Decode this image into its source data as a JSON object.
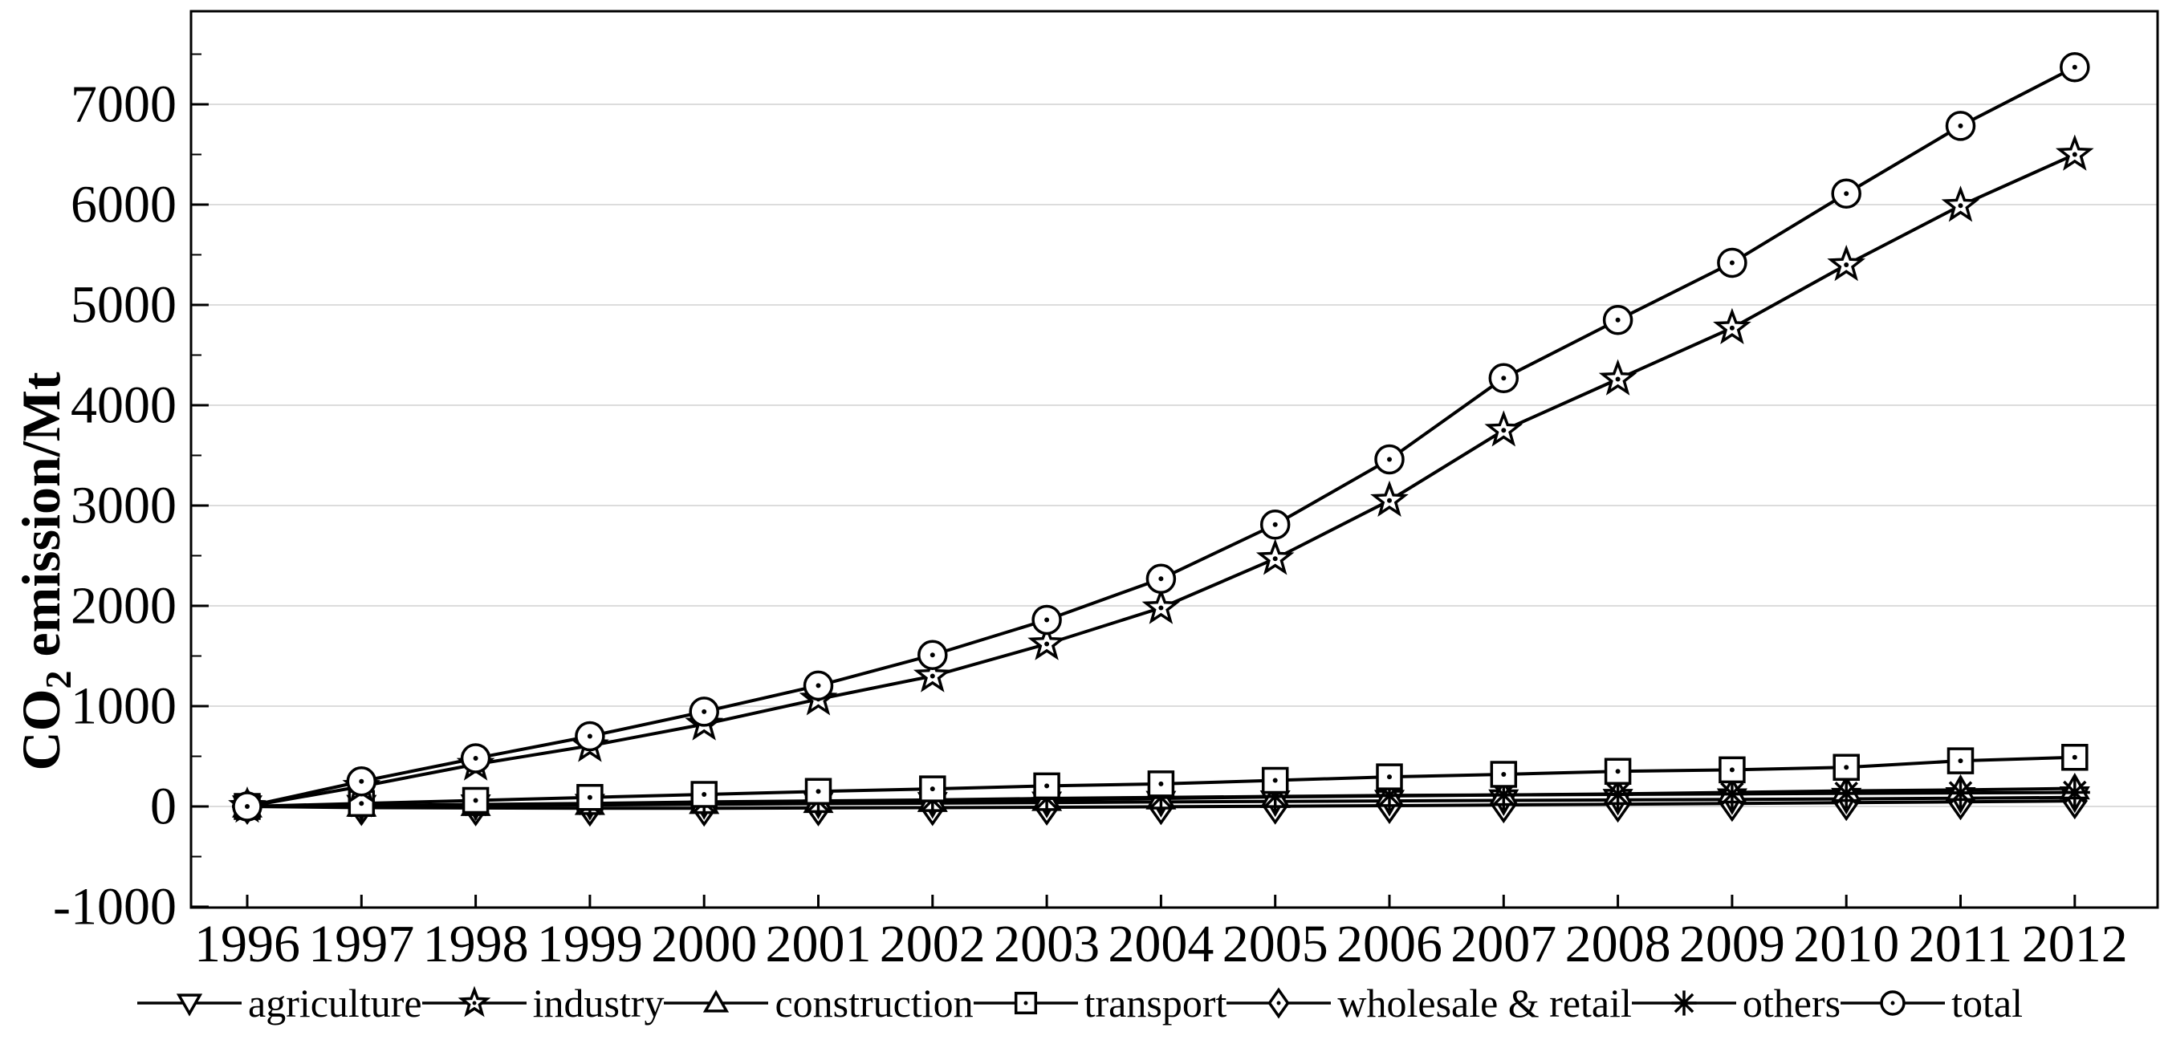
{
  "figure": {
    "background": "#ffffff",
    "axis_color": "#000000",
    "grid_color": "#dcdcdc",
    "series_color": "#000000"
  },
  "y_axis": {
    "title_prefix": "CO",
    "title_sub": "2",
    "title_suffix": " emission/Mt",
    "tick_labels": [
      "-1000",
      "0",
      "1000",
      "2000",
      "3000",
      "4000",
      "5000",
      "6000",
      "7000"
    ],
    "tick_values": [
      -1000,
      0,
      1000,
      2000,
      3000,
      4000,
      5000,
      6000,
      7000
    ],
    "minor_tick_values": [
      -500,
      500,
      1500,
      2500,
      3500,
      4500,
      5500,
      6500,
      7500
    ]
  },
  "x_axis": {
    "tick_labels": [
      "1996",
      "1997",
      "1998",
      "1999",
      "2000",
      "2001",
      "2002",
      "2003",
      "2004",
      "2005",
      "2006",
      "2007",
      "2008",
      "2009",
      "2010",
      "2011",
      "2012"
    ],
    "tick_values": [
      1996,
      1997,
      1998,
      1999,
      2000,
      2001,
      2002,
      2003,
      2004,
      2005,
      2006,
      2007,
      2008,
      2009,
      2010,
      2011,
      2012
    ]
  },
  "chart_data": {
    "type": "line",
    "title": "",
    "xlabel": "",
    "ylabel": "CO2 emission/Mt",
    "ylim": [
      -1000,
      7900
    ],
    "grid": "horizontal-major",
    "legend_position": "bottom",
    "x": [
      1996,
      1997,
      1998,
      1999,
      2000,
      2001,
      2002,
      2003,
      2004,
      2005,
      2006,
      2007,
      2008,
      2009,
      2010,
      2011,
      2012
    ],
    "series": [
      {
        "name": "agriculture",
        "marker": "triangle-down",
        "values": [
          0,
          5,
          10,
          15,
          22,
          28,
          33,
          38,
          45,
          50,
          55,
          60,
          65,
          70,
          75,
          82,
          90
        ]
      },
      {
        "name": "industry",
        "marker": "star",
        "values": [
          0,
          200,
          420,
          605,
          820,
          1070,
          1300,
          1620,
          1980,
          2470,
          3050,
          3750,
          4260,
          4770,
          5400,
          5990,
          6500
        ]
      },
      {
        "name": "construction",
        "marker": "triangle-up",
        "values": [
          0,
          8,
          15,
          25,
          35,
          45,
          55,
          65,
          80,
          95,
          105,
          115,
          125,
          140,
          155,
          165,
          180
        ]
      },
      {
        "name": "transport",
        "marker": "square",
        "values": [
          0,
          30,
          60,
          90,
          120,
          150,
          175,
          205,
          225,
          260,
          295,
          320,
          350,
          365,
          390,
          455,
          490
        ]
      },
      {
        "name": "wholesale & retail",
        "marker": "diamond",
        "values": [
          0,
          -12,
          -15,
          -18,
          -18,
          -15,
          -12,
          -8,
          -3,
          2,
          8,
          15,
          22,
          30,
          38,
          46,
          55
        ]
      },
      {
        "name": "others",
        "marker": "asterisk",
        "values": [
          0,
          10,
          20,
          30,
          45,
          55,
          65,
          80,
          90,
          100,
          110,
          115,
          120,
          125,
          130,
          135,
          140
        ]
      },
      {
        "name": "total",
        "marker": "circle",
        "values": [
          0,
          250,
          480,
          700,
          945,
          1205,
          1510,
          1860,
          2270,
          2810,
          3460,
          4270,
          4850,
          5420,
          6110,
          6785,
          7370
        ]
      }
    ]
  },
  "legend": {
    "items": [
      {
        "label": "agriculture",
        "marker": "triangle-down"
      },
      {
        "label": "industry",
        "marker": "star"
      },
      {
        "label": "construction",
        "marker": "triangle-up"
      },
      {
        "label": "transport",
        "marker": "square"
      },
      {
        "label": "wholesale & retail",
        "marker": "diamond"
      },
      {
        "label": "others",
        "marker": "asterisk"
      },
      {
        "label": "total",
        "marker": "circle"
      }
    ]
  }
}
